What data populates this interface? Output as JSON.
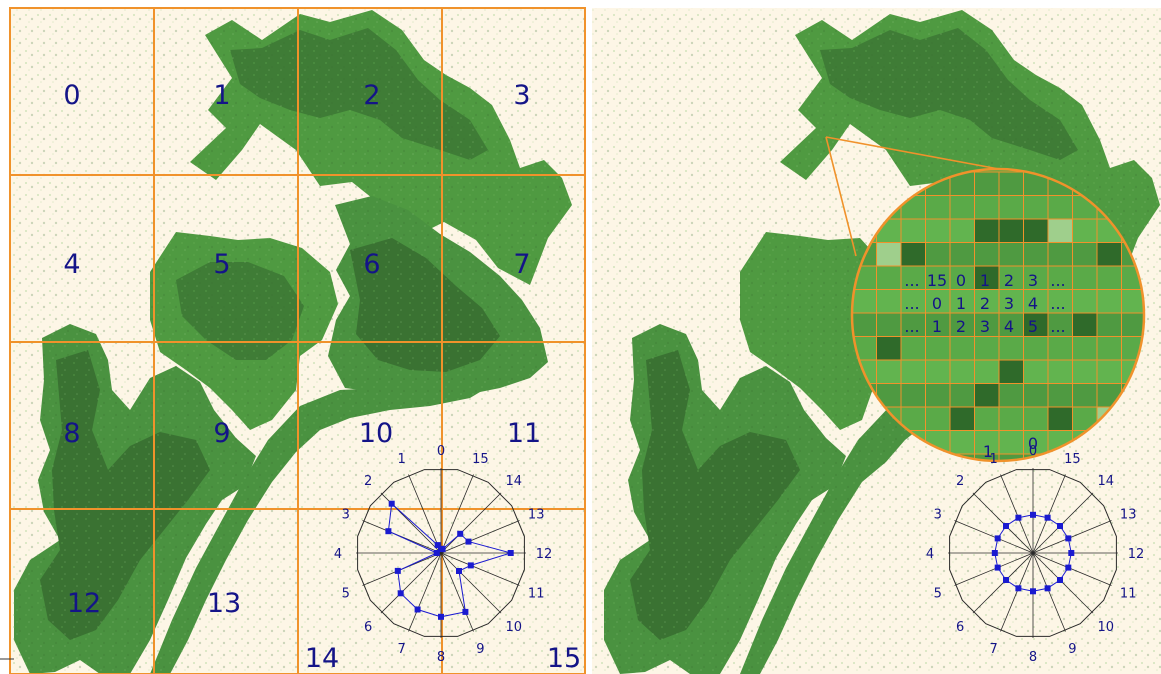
{
  "colors": {
    "background": "#fdf6e6",
    "grid_line": "#f0922b",
    "label_text": "#141488",
    "forest_dark": "#3f7c36",
    "forest_mid": "#4f9a41",
    "forest_light": "#6cb85a",
    "forest_pale": "#9fcf8c",
    "radar_line": "#1a1ad0",
    "radar_axis": "#2a2a2a"
  },
  "left_panel": {
    "tile_labels": [
      "0",
      "1",
      "2",
      "3",
      "4",
      "5",
      "6",
      "7",
      "8",
      "9",
      "10",
      "11",
      "12",
      "13",
      "14",
      "15"
    ],
    "radar": {
      "direction_labels": [
        "0",
        "1",
        "2",
        "3",
        "4",
        "5",
        "6",
        "7",
        "8",
        "9",
        "10",
        "11",
        "12",
        "13",
        "14",
        "15"
      ],
      "values": [
        0.05,
        0.1,
        0.82,
        0.67,
        0.05,
        0.55,
        0.67,
        0.72,
        0.75,
        0.75,
        0.3,
        0.38,
        0.82,
        0.35,
        0.32,
        0.05
      ]
    }
  },
  "right_panel": {
    "grid_rows": [
      [
        "...",
        "15",
        "0",
        "1",
        "2",
        "3",
        "..."
      ],
      [
        "...",
        "0",
        "1",
        "2",
        "3",
        "4",
        "..."
      ],
      [
        "...",
        "1",
        "2",
        "3",
        "4",
        "5",
        "..."
      ]
    ],
    "bottom_labels": [
      "1",
      "0"
    ],
    "radar": {
      "direction_labels": [
        "0",
        "1",
        "2",
        "3",
        "4",
        "5",
        "6",
        "7",
        "8",
        "9",
        "10",
        "11",
        "12",
        "13",
        "14",
        "15"
      ],
      "values": [
        0.45,
        0.45,
        0.45,
        0.45,
        0.45,
        0.45,
        0.45,
        0.45,
        0.45,
        0.45,
        0.45,
        0.45,
        0.45,
        0.45,
        0.45,
        0.45
      ]
    }
  }
}
